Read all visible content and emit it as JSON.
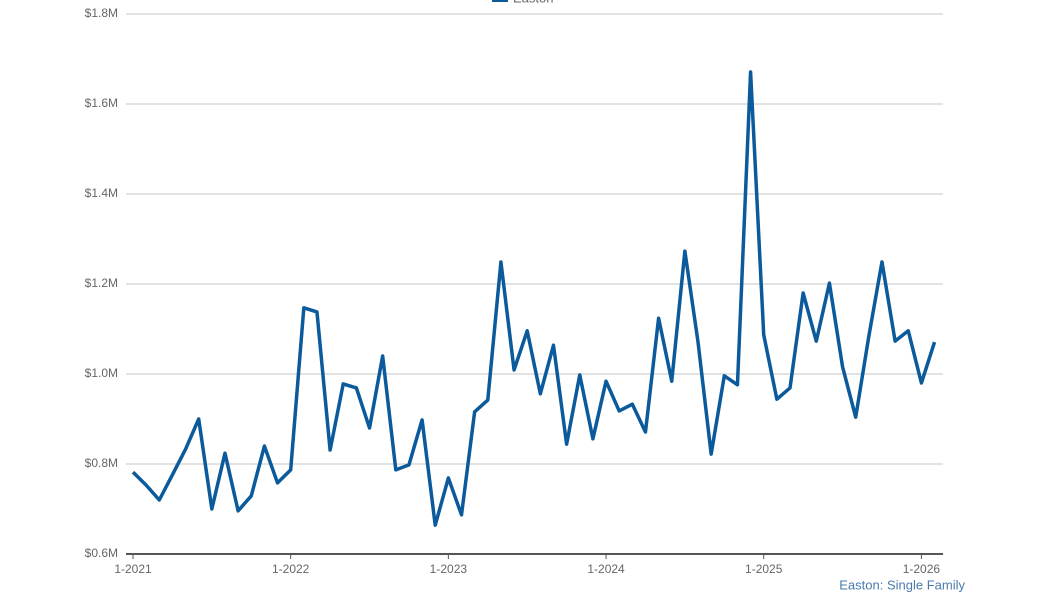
{
  "chart_data": {
    "type": "line",
    "legend_position": "top",
    "footnote": "Easton: Single Family",
    "categories": [
      "1-2021",
      null,
      null,
      null,
      null,
      null,
      null,
      null,
      null,
      null,
      null,
      null,
      "1-2022",
      null,
      null,
      null,
      null,
      null,
      null,
      null,
      null,
      null,
      null,
      null,
      "1-2023",
      null,
      null,
      null,
      null,
      null,
      null,
      null,
      null,
      null,
      null,
      null,
      "1-2024",
      null,
      null,
      null,
      null,
      null,
      null,
      null,
      null,
      null,
      null,
      null,
      "1-2025",
      null,
      null,
      null,
      null,
      null,
      null,
      null,
      null,
      null,
      null,
      null,
      "1-2026",
      null
    ],
    "series": [
      {
        "name": "Easton",
        "color": "#0b5a9c",
        "values": [
          782000,
          753000,
          720000,
          776000,
          833000,
          900000,
          700000,
          824000,
          696000,
          729000,
          840000,
          758000,
          787000,
          1147000,
          1138000,
          831000,
          978000,
          969000,
          880000,
          1040000,
          787000,
          798000,
          898000,
          664000,
          769000,
          687000,
          916000,
          942000,
          1249000,
          1009000,
          1096000,
          956000,
          1064000,
          844000,
          998000,
          856000,
          984000,
          918000,
          933000,
          871000,
          1124000,
          984000,
          1273000,
          1071000,
          822000,
          996000,
          976000,
          1671000,
          1087000,
          944000,
          969000,
          1180000,
          1073000,
          1202000,
          1016000,
          904000,
          1084000,
          1249000,
          1073000,
          1096000,
          980000,
          1071000
        ]
      }
    ],
    "ylim": [
      600000,
      1800000
    ],
    "yticks": [
      {
        "value": 600000,
        "label": "$0.6M"
      },
      {
        "value": 800000,
        "label": "$0.8M"
      },
      {
        "value": 1000000,
        "label": "$1.0M"
      },
      {
        "value": 1200000,
        "label": "$1.2M"
      },
      {
        "value": 1400000,
        "label": "$1.4M"
      },
      {
        "value": 1600000,
        "label": "$1.6M"
      },
      {
        "value": 1800000,
        "label": "$1.8M"
      }
    ],
    "grid": true
  }
}
